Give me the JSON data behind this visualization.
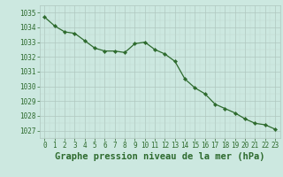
{
  "x": [
    0,
    1,
    2,
    3,
    4,
    5,
    6,
    7,
    8,
    9,
    10,
    11,
    12,
    13,
    14,
    15,
    16,
    17,
    18,
    19,
    20,
    21,
    22,
    23
  ],
  "y": [
    1034.7,
    1034.1,
    1033.7,
    1033.6,
    1033.1,
    1032.6,
    1032.4,
    1032.4,
    1032.3,
    1032.9,
    1033.0,
    1032.5,
    1032.2,
    1031.7,
    1030.5,
    1029.9,
    1029.5,
    1028.8,
    1028.5,
    1028.2,
    1027.8,
    1027.5,
    1027.4,
    1027.1
  ],
  "ylim": [
    1026.5,
    1035.5
  ],
  "yticks": [
    1027,
    1028,
    1029,
    1030,
    1031,
    1032,
    1033,
    1034,
    1035
  ],
  "xlim": [
    -0.5,
    23.5
  ],
  "xticks": [
    0,
    1,
    2,
    3,
    4,
    5,
    6,
    7,
    8,
    9,
    10,
    11,
    12,
    13,
    14,
    15,
    16,
    17,
    18,
    19,
    20,
    21,
    22,
    23
  ],
  "line_color": "#2d6a2d",
  "marker_color": "#2d6a2d",
  "bg_color": "#cce8e0",
  "grid_major_color": "#b0c8c0",
  "grid_minor_color": "#c0d8d0",
  "xlabel": "Graphe pression niveau de la mer (hPa)",
  "xlabel_color": "#2d6a2d",
  "tick_color": "#2d6a2d",
  "tick_fontsize": 5.5,
  "xlabel_fontsize": 7.5
}
